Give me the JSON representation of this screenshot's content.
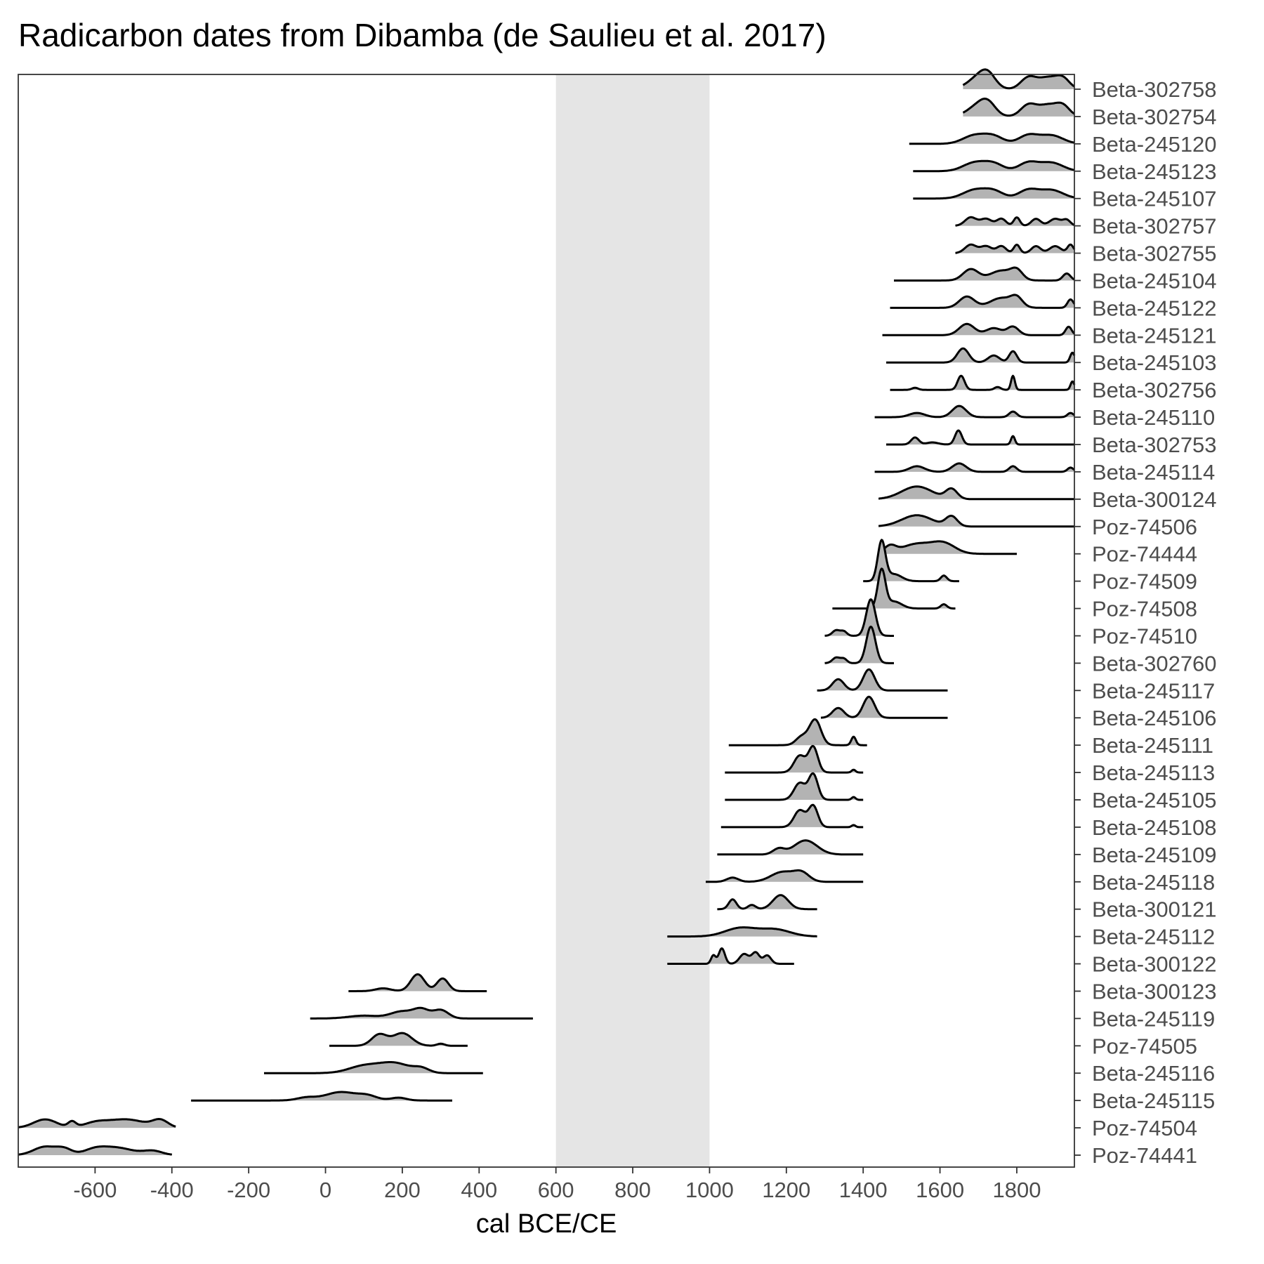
{
  "chart_data": {
    "type": "ridgeline",
    "title": "Radicarbon dates from Dibamba (de Saulieu et al. 2017)",
    "xlabel": "cal BCE/CE",
    "ylabel": "",
    "xlim": [
      -800,
      1950
    ],
    "x_ticks": [
      -600,
      -400,
      -200,
      0,
      200,
      400,
      600,
      800,
      1000,
      1200,
      1400,
      1600,
      1800
    ],
    "grid": false,
    "legend": "none",
    "highlight_band": {
      "from": 600,
      "to": 1000,
      "color": "#e5e5e5"
    },
    "colors": {
      "fill": "#b3b3b3",
      "line": "#000000",
      "panel_border": "#333333",
      "axis_text": "#4d4d4d"
    },
    "series": [
      {
        "label": "Beta-302758",
        "range": [
          1660,
          1950
        ],
        "peaks": [
          [
            1700,
            28,
            0.8
          ],
          [
            1725,
            20,
            0.8
          ],
          [
            1830,
            20,
            0.8
          ],
          [
            1880,
            25,
            0.8
          ],
          [
            1920,
            18,
            0.7
          ]
        ]
      },
      {
        "label": "Beta-302754",
        "range": [
          1660,
          1950
        ],
        "peaks": [
          [
            1700,
            28,
            0.75
          ],
          [
            1725,
            20,
            0.7
          ],
          [
            1830,
            20,
            0.8
          ],
          [
            1880,
            25,
            0.8
          ],
          [
            1920,
            18,
            0.7
          ]
        ]
      },
      {
        "label": "Beta-245120",
        "range": [
          1520,
          1950
        ],
        "peaks": [
          [
            1690,
            30,
            0.6
          ],
          [
            1740,
            25,
            0.5
          ],
          [
            1830,
            25,
            0.6
          ],
          [
            1890,
            30,
            0.6
          ]
        ]
      },
      {
        "label": "Beta-245123",
        "range": [
          1530,
          1950
        ],
        "peaks": [
          [
            1690,
            30,
            0.6
          ],
          [
            1740,
            25,
            0.5
          ],
          [
            1830,
            25,
            0.6
          ],
          [
            1890,
            30,
            0.6
          ]
        ]
      },
      {
        "label": "Beta-245107",
        "range": [
          1530,
          1950
        ],
        "peaks": [
          [
            1690,
            30,
            0.6
          ],
          [
            1740,
            25,
            0.5
          ],
          [
            1830,
            25,
            0.6
          ],
          [
            1890,
            30,
            0.6
          ]
        ]
      },
      {
        "label": "Beta-302757",
        "range": [
          1640,
          1950
        ],
        "peaks": [
          [
            1680,
            15,
            0.6
          ],
          [
            1720,
            15,
            0.5
          ],
          [
            1760,
            12,
            0.5
          ],
          [
            1800,
            8,
            0.6
          ],
          [
            1850,
            12,
            0.5
          ],
          [
            1900,
            15,
            0.5
          ],
          [
            1930,
            10,
            0.4
          ]
        ]
      },
      {
        "label": "Beta-302755",
        "range": [
          1640,
          1950
        ],
        "peaks": [
          [
            1680,
            15,
            0.6
          ],
          [
            1720,
            15,
            0.5
          ],
          [
            1760,
            12,
            0.5
          ],
          [
            1800,
            8,
            0.6
          ],
          [
            1850,
            12,
            0.5
          ],
          [
            1900,
            15,
            0.5
          ],
          [
            1940,
            8,
            0.6
          ]
        ]
      },
      {
        "label": "Beta-245104",
        "range": [
          1480,
          1950
        ],
        "peaks": [
          [
            1680,
            20,
            0.8
          ],
          [
            1760,
            30,
            0.7
          ],
          [
            1800,
            15,
            0.6
          ],
          [
            1930,
            10,
            0.5
          ]
        ]
      },
      {
        "label": "Beta-245122",
        "range": [
          1470,
          1950
        ],
        "peaks": [
          [
            1670,
            20,
            0.8
          ],
          [
            1760,
            30,
            0.7
          ],
          [
            1800,
            15,
            0.6
          ],
          [
            1940,
            8,
            0.6
          ]
        ]
      },
      {
        "label": "Beta-245121",
        "range": [
          1450,
          1950
        ],
        "peaks": [
          [
            1670,
            20,
            0.8
          ],
          [
            1740,
            20,
            0.5
          ],
          [
            1790,
            15,
            0.6
          ],
          [
            1935,
            8,
            0.6
          ]
        ]
      },
      {
        "label": "Beta-245103",
        "range": [
          1460,
          1950
        ],
        "peaks": [
          [
            1660,
            15,
            1.0
          ],
          [
            1740,
            15,
            0.5
          ],
          [
            1790,
            10,
            0.8
          ],
          [
            1945,
            6,
            0.7
          ]
        ]
      },
      {
        "label": "Beta-302756",
        "range": [
          1470,
          1950
        ],
        "peaks": [
          [
            1535,
            8,
            0.15
          ],
          [
            1655,
            9,
            1.0
          ],
          [
            1750,
            8,
            0.2
          ],
          [
            1790,
            5,
            1.0
          ],
          [
            1945,
            5,
            0.6
          ]
        ]
      },
      {
        "label": "Beta-245110",
        "range": [
          1430,
          1950
        ],
        "peaks": [
          [
            1540,
            20,
            0.3
          ],
          [
            1650,
            18,
            0.8
          ],
          [
            1790,
            10,
            0.4
          ],
          [
            1940,
            8,
            0.3
          ]
        ]
      },
      {
        "label": "Beta-302753",
        "range": [
          1460,
          1950
        ],
        "peaks": [
          [
            1535,
            10,
            0.5
          ],
          [
            1580,
            15,
            0.15
          ],
          [
            1648,
            9,
            1.0
          ],
          [
            1790,
            5,
            0.6
          ]
        ]
      },
      {
        "label": "Beta-245114",
        "range": [
          1430,
          1950
        ],
        "peaks": [
          [
            1540,
            20,
            0.4
          ],
          [
            1650,
            18,
            0.6
          ],
          [
            1790,
            10,
            0.4
          ],
          [
            1940,
            8,
            0.3
          ]
        ]
      },
      {
        "label": "Beta-300124",
        "range": [
          1440,
          1950
        ],
        "peaks": [
          [
            1540,
            40,
            0.9
          ],
          [
            1630,
            15,
            0.7
          ]
        ]
      },
      {
        "label": "Poz-74506",
        "range": [
          1440,
          1950
        ],
        "peaks": [
          [
            1540,
            40,
            0.8
          ],
          [
            1630,
            15,
            0.7
          ]
        ]
      },
      {
        "label": "Poz-74444",
        "range": [
          1440,
          1800
        ],
        "peaks": [
          [
            1470,
            15,
            0.5
          ],
          [
            1540,
            40,
            0.7
          ],
          [
            1610,
            30,
            0.7
          ]
        ]
      },
      {
        "label": "Poz-74509",
        "range": [
          1400,
          1650
        ],
        "peaks": [
          [
            1448,
            10,
            2.8
          ],
          [
            1480,
            20,
            0.5
          ],
          [
            1610,
            8,
            0.4
          ]
        ]
      },
      {
        "label": "Poz-74508",
        "range": [
          1320,
          1640
        ],
        "peaks": [
          [
            1448,
            10,
            2.7
          ],
          [
            1480,
            20,
            0.5
          ],
          [
            1610,
            8,
            0.3
          ]
        ]
      },
      {
        "label": "Poz-74510",
        "range": [
          1300,
          1480
        ],
        "peaks": [
          [
            1330,
            10,
            0.4
          ],
          [
            1350,
            8,
            0.3
          ],
          [
            1420,
            12,
            2.6
          ]
        ]
      },
      {
        "label": "Beta-302760",
        "range": [
          1300,
          1480
        ],
        "peaks": [
          [
            1330,
            10,
            0.4
          ],
          [
            1350,
            8,
            0.3
          ],
          [
            1420,
            12,
            2.6
          ]
        ]
      },
      {
        "label": "Beta-245117",
        "range": [
          1280,
          1620
        ],
        "peaks": [
          [
            1335,
            15,
            0.8
          ],
          [
            1415,
            15,
            1.5
          ]
        ]
      },
      {
        "label": "Beta-245106",
        "range": [
          1290,
          1620
        ],
        "peaks": [
          [
            1335,
            15,
            0.7
          ],
          [
            1415,
            15,
            1.5
          ]
        ]
      },
      {
        "label": "Beta-245111",
        "range": [
          1050,
          1410
        ],
        "peaks": [
          [
            1240,
            15,
            0.6
          ],
          [
            1275,
            15,
            1.8
          ],
          [
            1375,
            6,
            0.6
          ]
        ]
      },
      {
        "label": "Beta-245113",
        "range": [
          1040,
          1400
        ],
        "peaks": [
          [
            1235,
            15,
            1.2
          ],
          [
            1270,
            12,
            1.8
          ],
          [
            1375,
            5,
            0.2
          ]
        ]
      },
      {
        "label": "Beta-245105",
        "range": [
          1040,
          1400
        ],
        "peaks": [
          [
            1235,
            15,
            1.2
          ],
          [
            1270,
            12,
            1.8
          ],
          [
            1375,
            5,
            0.2
          ]
        ]
      },
      {
        "label": "Beta-245108",
        "range": [
          1030,
          1400
        ],
        "peaks": [
          [
            1235,
            15,
            1.2
          ],
          [
            1270,
            12,
            1.5
          ],
          [
            1375,
            5,
            0.15
          ]
        ]
      },
      {
        "label": "Beta-245109",
        "range": [
          1020,
          1400
        ],
        "peaks": [
          [
            1180,
            15,
            0.4
          ],
          [
            1250,
            30,
            1.0
          ]
        ]
      },
      {
        "label": "Beta-245118",
        "range": [
          990,
          1400
        ],
        "peaks": [
          [
            1060,
            15,
            0.3
          ],
          [
            1190,
            30,
            0.7
          ],
          [
            1240,
            20,
            0.6
          ]
        ]
      },
      {
        "label": "Beta-300121",
        "range": [
          1020,
          1280
        ],
        "peaks": [
          [
            1060,
            10,
            0.7
          ],
          [
            1110,
            10,
            0.3
          ],
          [
            1185,
            20,
            1.0
          ]
        ]
      },
      {
        "label": "Beta-245112",
        "range": [
          890,
          1280
        ],
        "peaks": [
          [
            1080,
            40,
            0.6
          ],
          [
            1170,
            40,
            0.5
          ]
        ]
      },
      {
        "label": "Beta-300122",
        "range": [
          890,
          1220
        ],
        "peaks": [
          [
            1010,
            6,
            0.6
          ],
          [
            1032,
            8,
            1.1
          ],
          [
            1090,
            12,
            0.7
          ],
          [
            1120,
            10,
            0.8
          ],
          [
            1150,
            10,
            0.6
          ]
        ]
      },
      {
        "label": "Beta-300123",
        "range": [
          60,
          420
        ],
        "peaks": [
          [
            150,
            20,
            0.2
          ],
          [
            240,
            18,
            1.2
          ],
          [
            305,
            15,
            0.9
          ]
        ]
      },
      {
        "label": "Beta-245119",
        "range": [
          -40,
          540
        ],
        "peaks": [
          [
            100,
            40,
            0.2
          ],
          [
            200,
            30,
            0.5
          ],
          [
            250,
            20,
            0.6
          ],
          [
            300,
            20,
            0.6
          ]
        ]
      },
      {
        "label": "Poz-74505",
        "range": [
          10,
          370
        ],
        "peaks": [
          [
            140,
            20,
            0.8
          ],
          [
            200,
            25,
            0.9
          ],
          [
            300,
            10,
            0.15
          ]
        ]
      },
      {
        "label": "Beta-245116",
        "range": [
          -160,
          410
        ],
        "peaks": [
          [
            100,
            40,
            0.5
          ],
          [
            180,
            40,
            0.7
          ],
          [
            250,
            20,
            0.3
          ]
        ]
      },
      {
        "label": "Beta-245115",
        "range": [
          -350,
          330
        ],
        "peaks": [
          [
            -50,
            25,
            0.2
          ],
          [
            40,
            40,
            0.6
          ],
          [
            110,
            25,
            0.3
          ],
          [
            190,
            20,
            0.2
          ]
        ]
      },
      {
        "label": "Poz-74504",
        "range": [
          -800,
          -390
        ],
        "peaks": [
          [
            -730,
            30,
            0.6
          ],
          [
            -660,
            10,
            0.4
          ],
          [
            -600,
            30,
            0.3
          ],
          [
            -520,
            50,
            0.6
          ],
          [
            -430,
            20,
            0.5
          ]
        ]
      },
      {
        "label": "Poz-74441",
        "range": [
          -800,
          -400
        ],
        "peaks": [
          [
            -730,
            30,
            0.6
          ],
          [
            -680,
            20,
            0.4
          ],
          [
            -600,
            30,
            0.4
          ],
          [
            -540,
            40,
            0.5
          ],
          [
            -450,
            25,
            0.3
          ]
        ]
      }
    ]
  }
}
